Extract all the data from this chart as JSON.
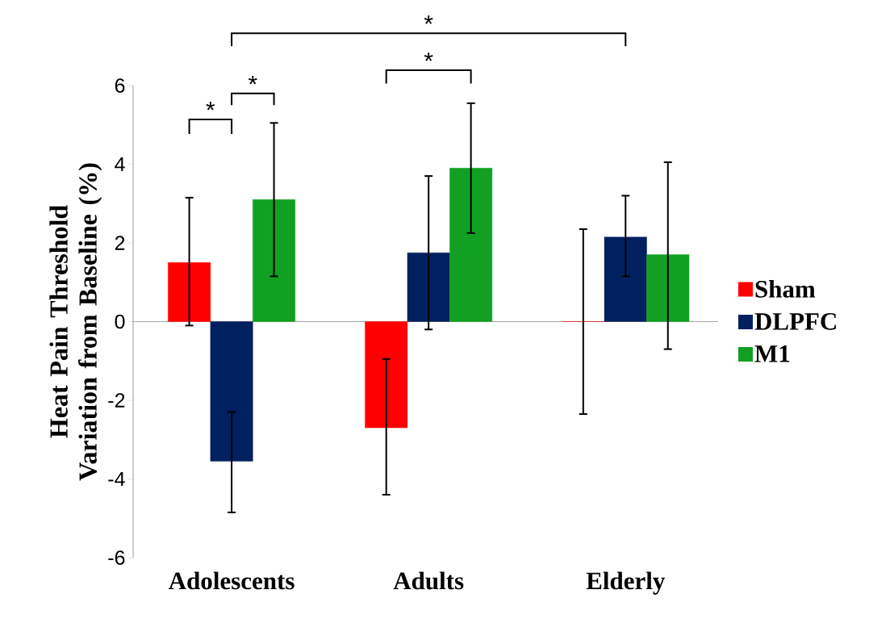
{
  "chart_data": {
    "type": "bar",
    "ylabel": "Heat Pain Threshold Variation from Baseline (%)",
    "categories": [
      "Adolescents",
      "Adults",
      "Elderly"
    ],
    "series": [
      {
        "name": "Sham",
        "color": "#ff0000",
        "values": [
          1.5,
          -2.7,
          0
        ],
        "errors": [
          [
            -0.1,
            3.15
          ],
          [
            -4.4,
            -0.95
          ],
          [
            -2.35,
            2.35
          ]
        ]
      },
      {
        "name": "DLPFC",
        "color": "#002060",
        "values": [
          -3.55,
          1.75,
          2.15
        ],
        "errors": [
          [
            -4.85,
            -2.3
          ],
          [
            -0.2,
            3.7
          ],
          [
            1.15,
            3.2
          ]
        ]
      },
      {
        "name": "M1",
        "color": "#12a023",
        "values": [
          3.1,
          3.9,
          1.7
        ],
        "errors": [
          [
            1.15,
            5.05
          ],
          [
            2.25,
            5.55
          ],
          [
            -0.7,
            4.05
          ]
        ]
      }
    ],
    "ylim": [
      -6,
      6
    ],
    "yticks": [
      -6,
      -4,
      -2,
      0,
      2,
      4,
      6
    ],
    "legend": "right",
    "annotations": [
      "*",
      "*",
      "*",
      "*"
    ]
  }
}
